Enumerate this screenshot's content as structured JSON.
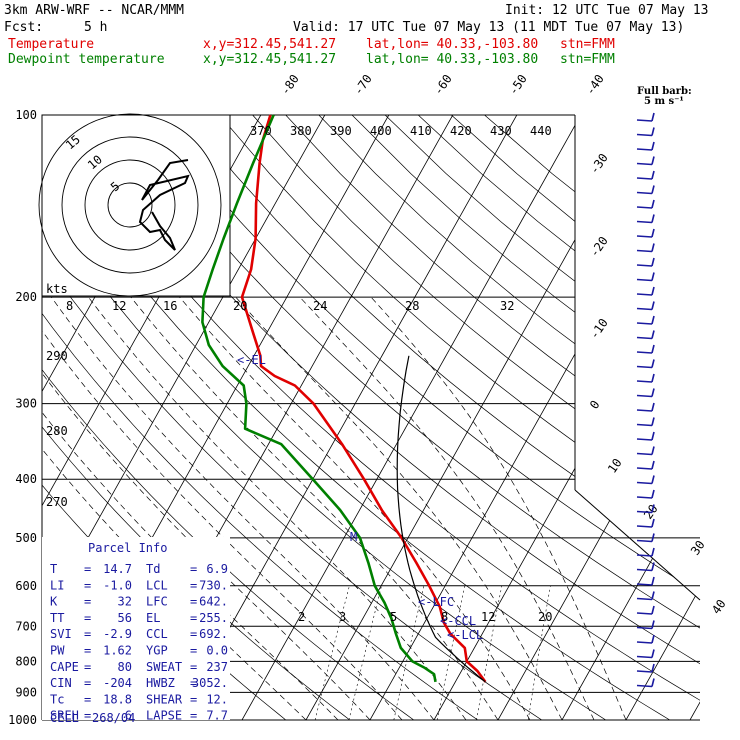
{
  "header": {
    "model": "3km ARW-WRF -- NCAR/MMM",
    "init": "Init: 12 UTC Tue 07 May 13",
    "fcst_label": "Fcst:",
    "fcst_value": "5 h",
    "valid": "Valid: 17 UTC Tue 07 May 13 (11 MDT Tue 07 May 13)"
  },
  "legend": {
    "temperature": {
      "label": "Temperature",
      "xy": "x,y=312.45,541.27",
      "latlon": "lat,lon= 40.33,-103.80",
      "stn": "stn=FMM",
      "color": "#e00000"
    },
    "dewpoint": {
      "label": "Dewpoint temperature",
      "xy": "x,y=312.45,541.27",
      "latlon": "lat,lon= 40.33,-103.80",
      "stn": "stn=FMM",
      "color": "#008000"
    }
  },
  "barb_legend": {
    "line1": "Full barb:",
    "line2": "5 m s⁻¹"
  },
  "parcel_info": {
    "title": "Parcel Info",
    "rows": [
      {
        "k1": "T",
        "v1": "14.7",
        "k2": "Td",
        "v2": "6.9"
      },
      {
        "k1": "LI",
        "v1": "-1.0",
        "k2": "LCL",
        "v2": "730."
      },
      {
        "k1": "K",
        "v1": "32",
        "k2": "LFC",
        "v2": "642."
      },
      {
        "k1": "TT",
        "v1": "56",
        "k2": "EL",
        "v2": "255."
      },
      {
        "k1": "SVI",
        "v1": "-2.9",
        "k2": "CCL",
        "v2": "692."
      },
      {
        "k1": "PW",
        "v1": "1.62",
        "k2": "YGP",
        "v2": "0.0"
      },
      {
        "k1": "CAPE",
        "v1": "80",
        "k2": "SWEAT",
        "v2": "237"
      },
      {
        "k1": "CIN",
        "v1": "-204",
        "k2": "HWBZ",
        "v2": "3052."
      },
      {
        "k1": "Tc",
        "v1": "18.8",
        "k2": "SHEAR",
        "v2": "12."
      },
      {
        "k1": "SREH",
        "v1": "6",
        "k2": "LAPSE",
        "v2": "7.7"
      }
    ],
    "cell_label": "CELL",
    "cell_value": "268/04"
  },
  "level_markers": {
    "el": "<-EL",
    "lfc": "<-LFC",
    "ccl": "<-CCL",
    "lcl": "<-LCL",
    "m": "M"
  },
  "hodograph": {
    "units_label": "kts",
    "ring_labels": [
      "15",
      "10",
      "5"
    ]
  },
  "chart_data": {
    "type": "line",
    "title": "",
    "y_axis": {
      "quantity": "pressure",
      "unit": "hPa",
      "scale": "log",
      "range": [
        1000,
        100
      ],
      "tick_labels": [
        "100",
        "200",
        "300",
        "400",
        "500",
        "600",
        "700",
        "800",
        "900",
        "1000"
      ]
    },
    "isotherm_labels": [
      "-80",
      "-70",
      "-60",
      "-50",
      "-40",
      "-30",
      "-20",
      "-10",
      "0",
      "10",
      "20",
      "30",
      "40"
    ],
    "theta_e_labels": [
      "370",
      "380",
      "390",
      "400",
      "410",
      "420",
      "430",
      "440"
    ],
    "mixing_ratio_upper_labels": [
      "8",
      "12",
      "16",
      "20",
      "24",
      "28",
      "32"
    ],
    "mixing_ratio_lower_labels": [
      "2",
      "3",
      "5",
      "8",
      "12",
      "20"
    ],
    "dry_adiabat_labels": [
      "290",
      "280",
      "270"
    ],
    "series": [
      {
        "name": "Temperature",
        "color": "#e00000",
        "p": [
          865,
          830,
          800,
          760,
          720,
          690,
          650,
          600,
          550,
          500,
          450,
          400,
          350,
          300,
          280,
          270,
          260,
          250,
          230,
          200,
          180,
          160,
          140,
          120,
          110,
          100
        ],
        "t": [
          14.7,
          12.5,
          10.0,
          8.5,
          5.0,
          3.0,
          1.0,
          -2.5,
          -6.5,
          -11.0,
          -16.5,
          -22.0,
          -28.5,
          -36.5,
          -41.0,
          -45.0,
          -48.0,
          -49.0,
          -52.0,
          -57.0,
          -58.0,
          -60.0,
          -63.0,
          -66.0,
          -67.5,
          -68.5
        ]
      },
      {
        "name": "Dewpoint temperature",
        "color": "#008000",
        "p": [
          865,
          840,
          820,
          800,
          760,
          720,
          680,
          640,
          600,
          550,
          500,
          450,
          400,
          350,
          330,
          300,
          280,
          260,
          240,
          220,
          200,
          180,
          160,
          140,
          120,
          100
        ],
        "t": [
          6.9,
          6.0,
          4.0,
          1.5,
          -1.5,
          -3.5,
          -5.5,
          -8.0,
          -11.0,
          -14.0,
          -17.5,
          -23.0,
          -30.0,
          -38.0,
          -45.0,
          -47.0,
          -49.0,
          -54.0,
          -58.0,
          -61.0,
          -63.0,
          -64.0,
          -65.0,
          -66.0,
          -67.0,
          -68.0
        ]
      }
    ]
  }
}
